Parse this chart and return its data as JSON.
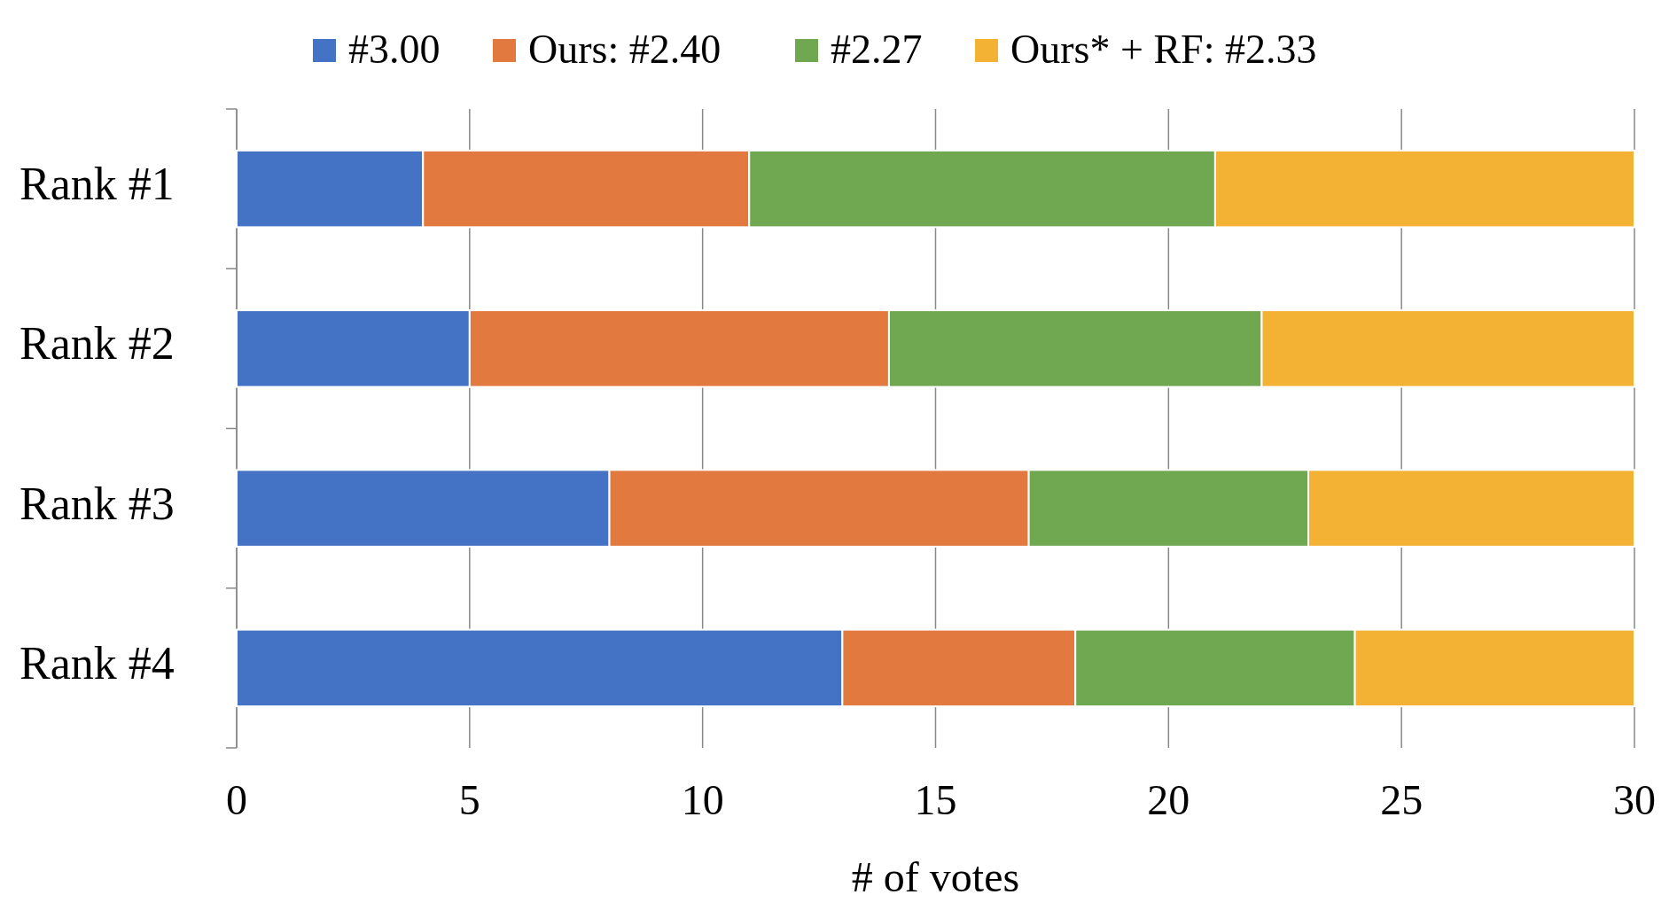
{
  "chart_data": {
    "type": "bar",
    "orientation": "horizontal",
    "stacked": true,
    "xlabel": "# of votes",
    "categories": [
      "Rank #1",
      "Rank #2",
      "Rank #3",
      "Rank #4"
    ],
    "series": [
      {
        "name": "#3.00",
        "color": "#4472c4",
        "values": [
          4,
          5,
          8,
          13
        ]
      },
      {
        "name": "Ours: #2.40",
        "color": "#e2793f",
        "values": [
          7,
          9,
          9,
          5
        ]
      },
      {
        "name": "#2.27",
        "color": "#70a851",
        "values": [
          10,
          8,
          6,
          6
        ]
      },
      {
        "name": "Ours* + RF: #2.33",
        "color": "#f4b234",
        "values": [
          9,
          8,
          7,
          6
        ]
      }
    ],
    "xlim": [
      0,
      30
    ],
    "xticks": [
      0,
      5,
      10,
      15,
      20,
      25,
      30
    ],
    "grid": "x",
    "legend": "top"
  }
}
